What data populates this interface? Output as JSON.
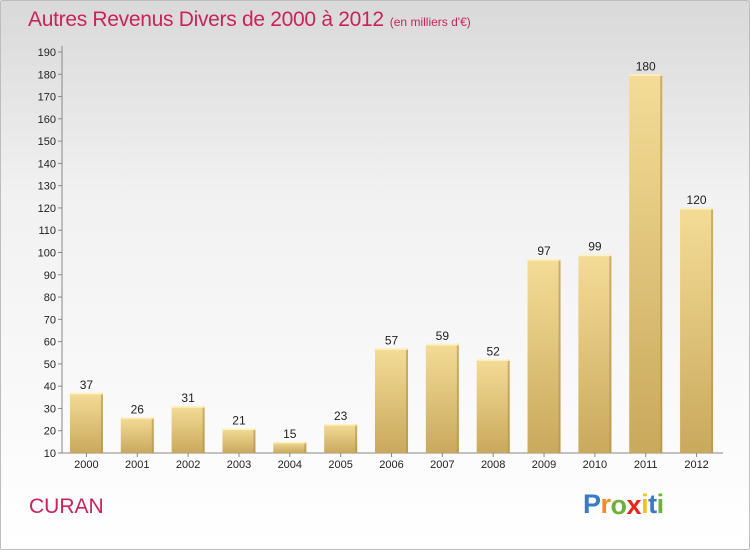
{
  "header": {
    "title": "Autres Revenus Divers de 2000 à 2012",
    "subtitle": "(en milliers d'€)"
  },
  "footer": {
    "place": "CURAN",
    "logo_letters": [
      "P",
      "r",
      "o",
      "x",
      "i",
      "t",
      "i"
    ],
    "logo_colors": [
      "#3a78c8",
      "#f28c1c",
      "#6cb23a",
      "#e8261c",
      "#f2c21c",
      "#3a78c8",
      "#6cb23a"
    ]
  },
  "colors": {
    "bar_top": "#f4dc97",
    "bar_bottom": "#c9a95c",
    "bar_side": "#b39046",
    "accent": "#c8245a"
  },
  "chart_data": {
    "type": "bar",
    "title": "Autres Revenus Divers de 2000 à 2012",
    "subtitle": "(en milliers d'€)",
    "categories": [
      "2000",
      "2001",
      "2002",
      "2003",
      "2004",
      "2005",
      "2006",
      "2007",
      "2008",
      "2009",
      "2010",
      "2011",
      "2012"
    ],
    "values": [
      37,
      26,
      31,
      21,
      15,
      23,
      57,
      59,
      52,
      97,
      99,
      180,
      120
    ],
    "ylim": [
      10,
      190
    ],
    "yticks": [
      10,
      20,
      30,
      40,
      50,
      60,
      70,
      80,
      90,
      100,
      110,
      120,
      130,
      140,
      150,
      160,
      170,
      180,
      190
    ],
    "grid": false,
    "data_labels": true
  }
}
